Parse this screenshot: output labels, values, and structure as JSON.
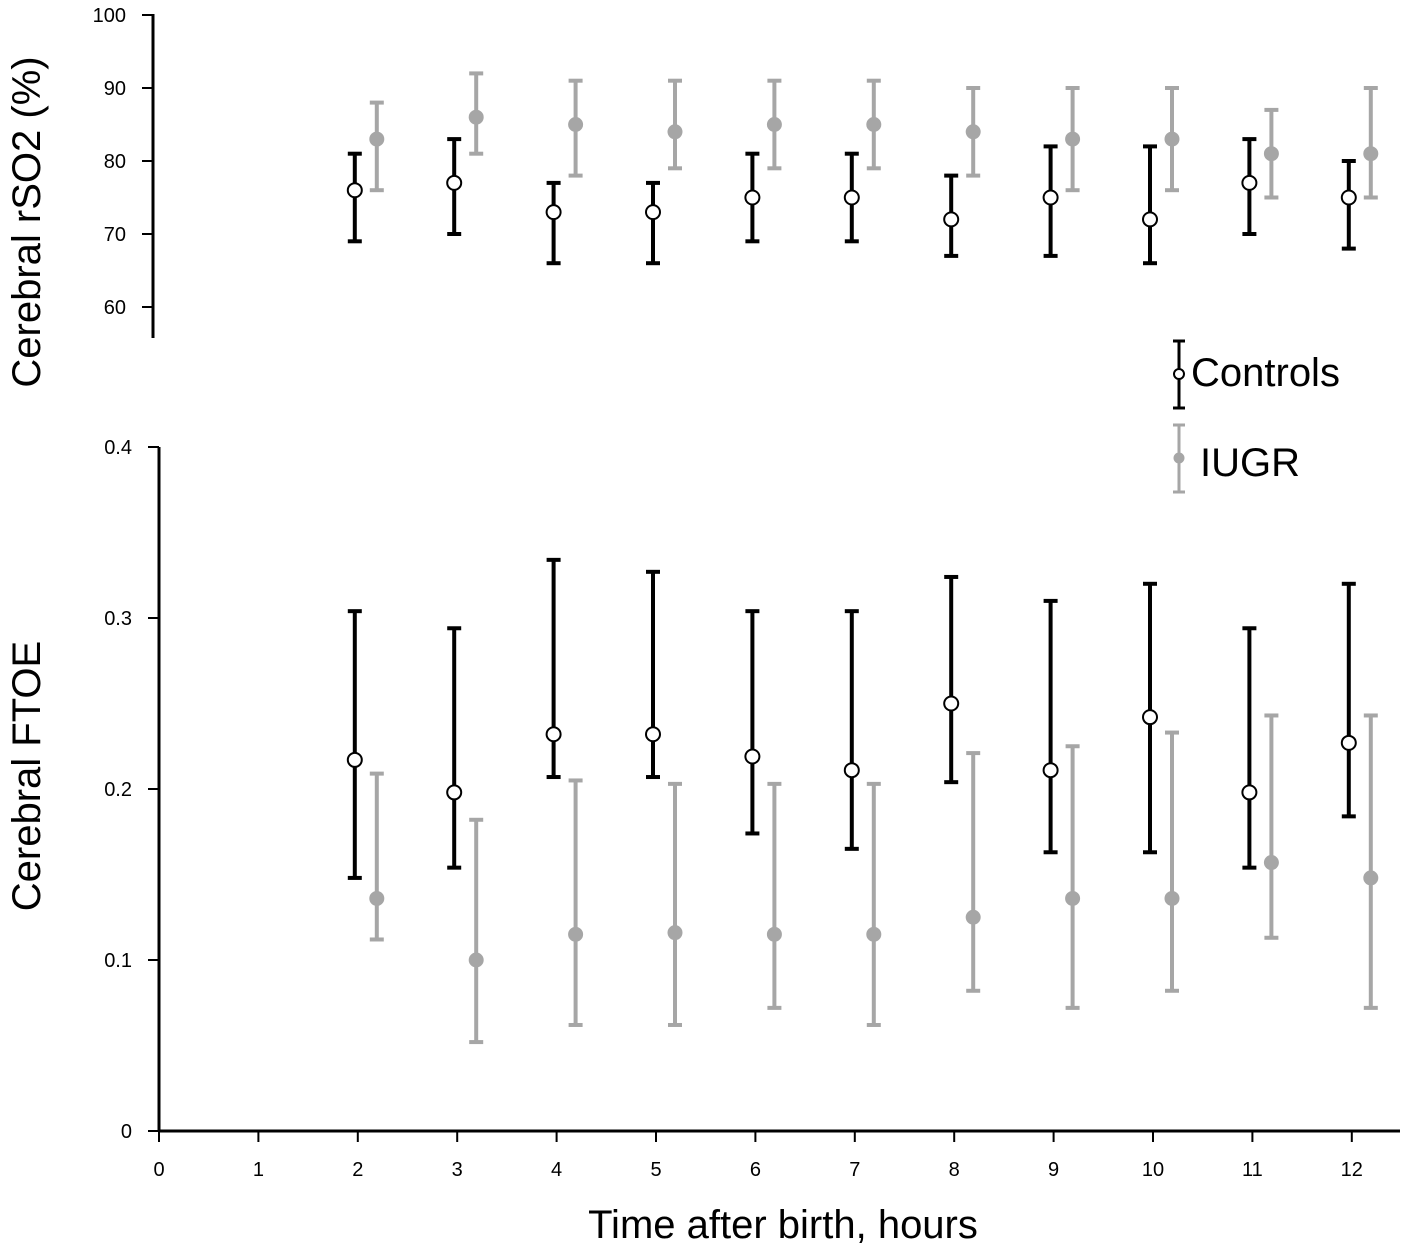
{
  "colors": {
    "controls": "#000000",
    "iugr": "#a6a6a6",
    "axis": "#000000",
    "background": "#ffffff"
  },
  "chart_data": [
    {
      "type": "scatter",
      "panel": "top",
      "ylabel": "Cerebral rSO2 (%)",
      "ylim": [
        55,
        100
      ],
      "yticks": [
        60,
        70,
        80,
        90,
        100
      ],
      "grid": false,
      "legend": "right",
      "series": [
        {
          "name": "Controls",
          "marker": "open-circle",
          "x": [
            2,
            3,
            4,
            5,
            6,
            7,
            8,
            9,
            10,
            11,
            12
          ],
          "y": [
            76,
            77,
            73,
            73,
            75,
            75,
            72,
            75,
            72,
            77,
            75
          ],
          "lower": [
            69,
            70,
            66,
            66,
            69,
            69,
            67,
            67,
            66,
            70,
            68
          ],
          "upper": [
            81,
            83,
            77,
            77,
            81,
            81,
            78,
            82,
            82,
            83,
            80
          ]
        },
        {
          "name": "IUGR",
          "marker": "filled-circle",
          "x": [
            2,
            3,
            4,
            5,
            6,
            7,
            8,
            9,
            10,
            11,
            12
          ],
          "y": [
            83,
            86,
            85,
            84,
            85,
            85,
            84,
            83,
            83,
            81,
            81
          ],
          "lower": [
            76,
            81,
            78,
            79,
            79,
            79,
            78,
            76,
            76,
            75,
            75
          ],
          "upper": [
            88,
            92,
            91,
            91,
            91,
            91,
            90,
            90,
            90,
            87,
            90
          ]
        }
      ]
    },
    {
      "type": "scatter",
      "panel": "bottom",
      "ylabel": "Cerebral FTOE",
      "xlabel": "Time after birth, hours",
      "ylim": [
        0,
        0.4
      ],
      "yticks": [
        "0",
        "0.1",
        "0.2",
        "0.3",
        "0.4"
      ],
      "xlim": [
        0,
        12.5
      ],
      "xticks": [
        0,
        1,
        2,
        3,
        4,
        5,
        6,
        7,
        8,
        9,
        10,
        11,
        12
      ],
      "grid": false,
      "series": [
        {
          "name": "Controls",
          "marker": "open-circle",
          "x": [
            2,
            3,
            4,
            5,
            6,
            7,
            8,
            9,
            10,
            11,
            12
          ],
          "y": [
            0.217,
            0.198,
            0.232,
            0.232,
            0.219,
            0.211,
            0.25,
            0.211,
            0.242,
            0.198,
            0.227
          ],
          "lower": [
            0.148,
            0.154,
            0.207,
            0.207,
            0.174,
            0.165,
            0.204,
            0.163,
            0.163,
            0.154,
            0.184
          ],
          "upper": [
            0.304,
            0.294,
            0.334,
            0.327,
            0.304,
            0.304,
            0.324,
            0.31,
            0.32,
            0.294,
            0.32
          ]
        },
        {
          "name": "IUGR",
          "marker": "filled-circle",
          "x": [
            2,
            3,
            4,
            5,
            6,
            7,
            8,
            9,
            10,
            11,
            12
          ],
          "y": [
            0.136,
            0.1,
            0.115,
            0.116,
            0.115,
            0.115,
            0.125,
            0.136,
            0.136,
            0.157,
            0.148
          ],
          "lower": [
            0.112,
            0.052,
            0.062,
            0.062,
            0.072,
            0.062,
            0.082,
            0.072,
            0.082,
            0.113,
            0.072
          ],
          "upper": [
            0.209,
            0.182,
            0.205,
            0.203,
            0.203,
            0.203,
            0.221,
            0.225,
            0.233,
            0.243,
            0.243
          ]
        }
      ]
    }
  ]
}
